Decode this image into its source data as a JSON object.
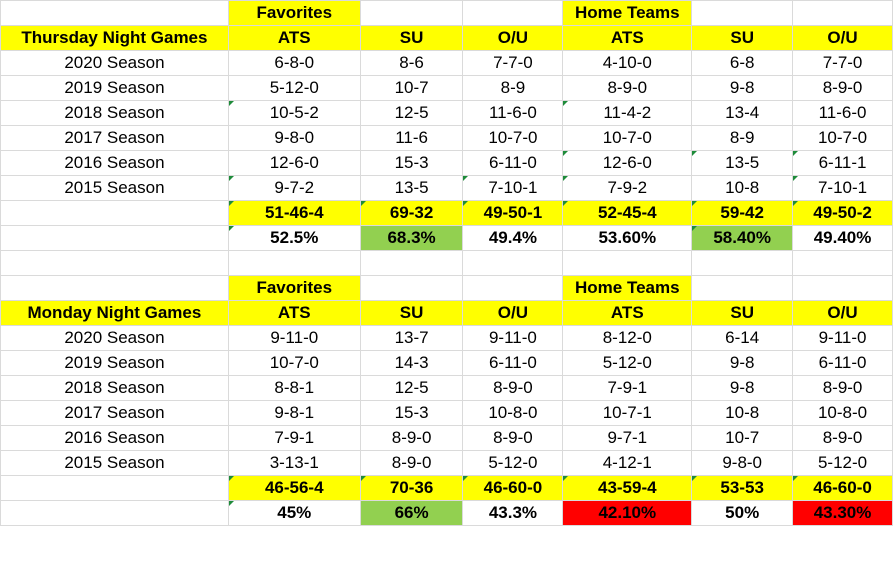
{
  "colors": {
    "highlight": "#ffff00",
    "good": "#92d050",
    "bad": "#ff0000",
    "gridline": "#dadada"
  },
  "tables": [
    {
      "title": "Thursday Night Games",
      "groups": {
        "favorites": "Favorites",
        "home_teams": "Home Teams"
      },
      "columns": [
        "ATS",
        "SU",
        "O/U",
        "ATS",
        "SU",
        "O/U"
      ],
      "rows": [
        {
          "label": "2020 Season",
          "cells": [
            "6-8-0",
            "8-6",
            "7-7-0",
            "4-10-0",
            "6-8",
            "7-7-0"
          ]
        },
        {
          "label": "2019 Season",
          "cells": [
            "5-12-0",
            "10-7",
            "8-9",
            "8-9-0",
            "9-8",
            "8-9-0"
          ]
        },
        {
          "label": "2018 Season",
          "cells": [
            "10-5-2",
            "12-5",
            "11-6-0",
            "11-4-2",
            "13-4",
            "11-6-0"
          ]
        },
        {
          "label": "2017 Season",
          "cells": [
            "9-8-0",
            "11-6",
            "10-7-0",
            "10-7-0",
            "8-9",
            "10-7-0"
          ]
        },
        {
          "label": "2016 Season",
          "cells": [
            "12-6-0",
            "15-3",
            "6-11-0",
            "12-6-0",
            "13-5",
            "6-11-1"
          ]
        },
        {
          "label": "2015 Season",
          "cells": [
            "9-7-2",
            "13-5",
            "7-10-1",
            "7-9-2",
            "10-8",
            "7-10-1"
          ]
        }
      ],
      "totals": [
        "51-46-4",
        "69-32",
        "49-50-1",
        "52-45-4",
        "59-42",
        "49-50-2"
      ],
      "percentages": [
        "52.5%",
        "68.3%",
        "49.4%",
        "53.60%",
        "58.40%",
        "49.40%"
      ]
    },
    {
      "title": "Monday Night Games",
      "groups": {
        "favorites": "Favorites",
        "home_teams": "Home Teams"
      },
      "columns": [
        "ATS",
        "SU",
        "O/U",
        "ATS",
        "SU",
        "O/U"
      ],
      "rows": [
        {
          "label": "2020 Season",
          "cells": [
            "9-11-0",
            "13-7",
            "9-11-0",
            "8-12-0",
            "6-14",
            "9-11-0"
          ]
        },
        {
          "label": "2019 Season",
          "cells": [
            "10-7-0",
            "14-3",
            "6-11-0",
            "5-12-0",
            "9-8",
            "6-11-0"
          ]
        },
        {
          "label": "2018 Season",
          "cells": [
            "8-8-1",
            "12-5",
            "8-9-0",
            "7-9-1",
            "9-8",
            "8-9-0"
          ]
        },
        {
          "label": "2017 Season",
          "cells": [
            "9-8-1",
            "15-3",
            "10-8-0",
            "10-7-1",
            "10-8",
            "10-8-0"
          ]
        },
        {
          "label": "2016 Season",
          "cells": [
            "7-9-1",
            "8-9-0",
            "8-9-0",
            "9-7-1",
            "10-7",
            "8-9-0"
          ]
        },
        {
          "label": "2015 Season",
          "cells": [
            "3-13-1",
            "8-9-0",
            "5-12-0",
            "4-12-1",
            "9-8-0",
            "5-12-0"
          ]
        }
      ],
      "totals": [
        "46-56-4",
        "70-36",
        "46-60-0",
        "43-59-4",
        "53-53",
        "46-60-0"
      ],
      "percentages": [
        "45%",
        "66%",
        "43.3%",
        "42.10%",
        "50%",
        "43.30%"
      ]
    }
  ]
}
